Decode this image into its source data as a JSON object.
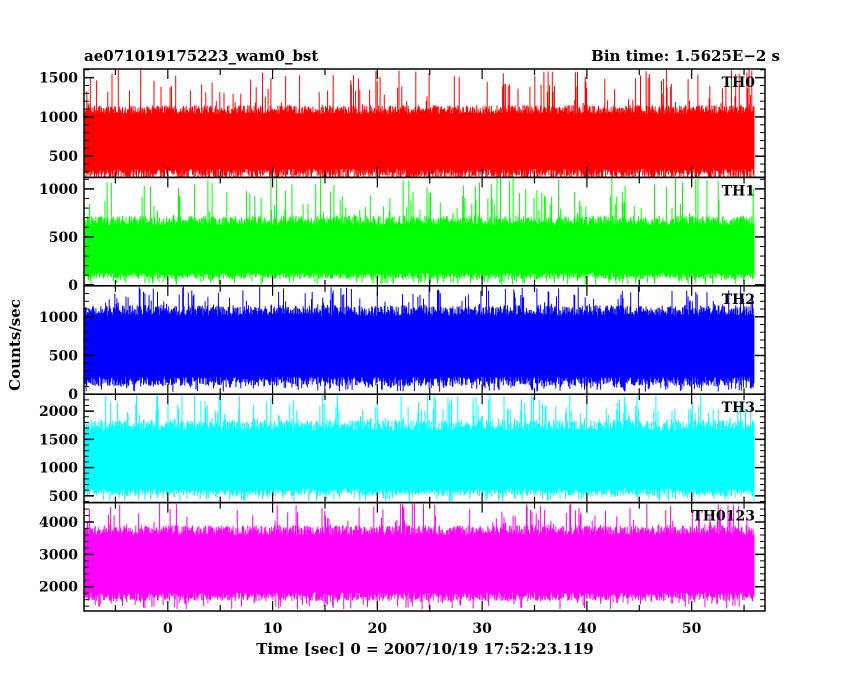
{
  "chart_data": {
    "type": "line",
    "title_left": "ae071019175223_wam0_bst",
    "title_right": "Bin time: 1.5625E−2 s",
    "xlabel": "Time [sec] 0 = 2007/10/19 17:52:23.119",
    "ylabel": "Counts/sec",
    "xlim": [
      -8,
      57
    ],
    "x_data_range": [
      -8,
      56
    ],
    "x_ticks": [
      0,
      10,
      20,
      30,
      40,
      50
    ],
    "panels": [
      {
        "name": "TH0",
        "color": "#ff0000",
        "ylim": [
          230,
          1610
        ],
        "y_ticks": [
          500,
          1000,
          1500
        ],
        "mean": 700,
        "band_low": 220,
        "band_high": 1150,
        "min": 120,
        "max": 1610
      },
      {
        "name": "TH1",
        "color": "#00ff00",
        "ylim": [
          -10,
          1120
        ],
        "y_ticks": [
          0,
          500,
          1000
        ],
        "mean": 330,
        "band_low": 60,
        "band_high": 720,
        "min": 0,
        "max": 1120
      },
      {
        "name": "TH2",
        "color": "#0000ff",
        "ylim": [
          0,
          1400
        ],
        "y_ticks": [
          0,
          500,
          1000
        ],
        "mean": 600,
        "band_low": 100,
        "band_high": 1150,
        "min": 30,
        "max": 1400
      },
      {
        "name": "TH3",
        "color": "#00ffff",
        "ylim": [
          380,
          2300
        ],
        "y_ticks": [
          500,
          1000,
          1500,
          2000
        ],
        "mean": 1050,
        "band_low": 500,
        "band_high": 1850,
        "min": 400,
        "max": 2300
      },
      {
        "name": "TH0123",
        "color": "#ff00ff",
        "ylim": [
          1250,
          4600
        ],
        "y_ticks": [
          2000,
          3000,
          4000
        ],
        "mean": 2650,
        "band_low": 1550,
        "band_high": 3900,
        "min": 1300,
        "max": 4600
      }
    ],
    "grid": false,
    "legend": "none"
  }
}
